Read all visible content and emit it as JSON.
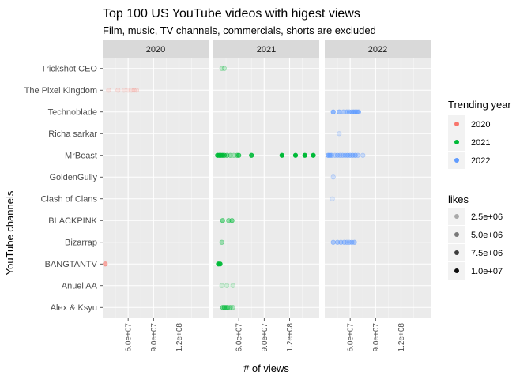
{
  "chart_data": {
    "type": "scatter",
    "title": "Top 100 US YouTube videos with higest views",
    "subtitle": "Film, music, TV channels, commercials, shorts are excluded",
    "xlabel": "# of views",
    "ylabel": "YouTube channels",
    "xlim": [
      30000000,
      155000000
    ],
    "x_ticks": [
      60000000,
      90000000,
      120000000
    ],
    "x_tick_labels": [
      "6.0e+07",
      "9.0e+07",
      "1.2e+08"
    ],
    "grid": true,
    "facets": [
      "2020",
      "2021",
      "2022"
    ],
    "categories": [
      "Trickshot CEO",
      "The Pixel Kingdom",
      "Technoblade",
      "Richa sarkar",
      "MrBeast",
      "GoldenGully",
      "Clash of Clans",
      "BLACKPINK",
      "Bizarrap",
      "BANGTANTV",
      "Anuel AA",
      "Alex & Ksyu"
    ],
    "legend_color": {
      "title": "Trending year",
      "entries": [
        {
          "label": "2020",
          "color": "#F8766D"
        },
        {
          "label": "2021",
          "color": "#00BA38"
        },
        {
          "label": "2022",
          "color": "#619CFF"
        }
      ]
    },
    "legend_alpha": {
      "title": "likes",
      "entries": [
        {
          "label": "2.5e+06",
          "alpha": 0.3
        },
        {
          "label": "5.0e+06",
          "alpha": 0.5
        },
        {
          "label": "7.5e+06",
          "alpha": 0.75
        },
        {
          "label": "1.0e+07",
          "alpha": 0.95
        }
      ]
    },
    "legend_placement": "right",
    "series": [
      {
        "facet": "2020",
        "color": "#F8766D",
        "points": [
          {
            "y": "The Pixel Kingdom",
            "x": 37000000,
            "likes": 900000
          },
          {
            "y": "The Pixel Kingdom",
            "x": 48000000,
            "likes": 900000
          },
          {
            "y": "The Pixel Kingdom",
            "x": 55000000,
            "likes": 900000
          },
          {
            "y": "The Pixel Kingdom",
            "x": 60000000,
            "likes": 900000
          },
          {
            "y": "The Pixel Kingdom",
            "x": 64000000,
            "likes": 900000
          },
          {
            "y": "The Pixel Kingdom",
            "x": 67000000,
            "likes": 900000
          },
          {
            "y": "The Pixel Kingdom",
            "x": 70000000,
            "likes": 900000
          },
          {
            "y": "BANGTANTV",
            "x": 33000000,
            "likes": 6000000
          }
        ]
      },
      {
        "facet": "2021",
        "color": "#00BA38",
        "points": [
          {
            "y": "Trickshot CEO",
            "x": 40000000,
            "likes": 2000000
          },
          {
            "y": "Trickshot CEO",
            "x": 43000000,
            "likes": 2000000
          },
          {
            "y": "MrBeast",
            "x": 35000000,
            "likes": 9000000
          },
          {
            "y": "MrBeast",
            "x": 37000000,
            "likes": 9000000
          },
          {
            "y": "MrBeast",
            "x": 39000000,
            "likes": 9000000
          },
          {
            "y": "MrBeast",
            "x": 41000000,
            "likes": 8000000
          },
          {
            "y": "MrBeast",
            "x": 43000000,
            "likes": 7000000
          },
          {
            "y": "MrBeast",
            "x": 46000000,
            "likes": 5000000
          },
          {
            "y": "MrBeast",
            "x": 50000000,
            "likes": 4000000
          },
          {
            "y": "MrBeast",
            "x": 54000000,
            "likes": 3000000
          },
          {
            "y": "MrBeast",
            "x": 58000000,
            "likes": 5000000
          },
          {
            "y": "MrBeast",
            "x": 60000000,
            "likes": 7000000
          },
          {
            "y": "MrBeast",
            "x": 75000000,
            "likes": 9000000
          },
          {
            "y": "MrBeast",
            "x": 111000000,
            "likes": 10000000
          },
          {
            "y": "MrBeast",
            "x": 127000000,
            "likes": 10000000
          },
          {
            "y": "MrBeast",
            "x": 138000000,
            "likes": 10000000
          },
          {
            "y": "MrBeast",
            "x": 148000000,
            "likes": 10000000
          },
          {
            "y": "BLACKPINK",
            "x": 41000000,
            "likes": 5000000
          },
          {
            "y": "BLACKPINK",
            "x": 48000000,
            "likes": 4000000
          },
          {
            "y": "BLACKPINK",
            "x": 52000000,
            "likes": 5000000
          },
          {
            "y": "Bizarrap",
            "x": 40000000,
            "likes": 3500000
          },
          {
            "y": "BANGTANTV",
            "x": 36000000,
            "likes": 9500000
          },
          {
            "y": "BANGTANTV",
            "x": 38000000,
            "likes": 9500000
          },
          {
            "y": "Anuel AA",
            "x": 40000000,
            "likes": 1500000
          },
          {
            "y": "Anuel AA",
            "x": 46000000,
            "likes": 1500000
          },
          {
            "y": "Anuel AA",
            "x": 53000000,
            "likes": 1500000
          },
          {
            "y": "Alex & Ksyu",
            "x": 41000000,
            "likes": 5000000
          },
          {
            "y": "Alex & Ksyu",
            "x": 43000000,
            "likes": 5000000
          },
          {
            "y": "Alex & Ksyu",
            "x": 45000000,
            "likes": 5000000
          },
          {
            "y": "Alex & Ksyu",
            "x": 47000000,
            "likes": 4000000
          },
          {
            "y": "Alex & Ksyu",
            "x": 50000000,
            "likes": 4000000
          },
          {
            "y": "Alex & Ksyu",
            "x": 53000000,
            "likes": 3000000
          }
        ]
      },
      {
        "facet": "2022",
        "color": "#619CFF",
        "points": [
          {
            "y": "Technoblade",
            "x": 40000000,
            "likes": 7000000
          },
          {
            "y": "Technoblade",
            "x": 47000000,
            "likes": 6000000
          },
          {
            "y": "Technoblade",
            "x": 52000000,
            "likes": 5000000
          },
          {
            "y": "Technoblade",
            "x": 56000000,
            "likes": 6000000
          },
          {
            "y": "Technoblade",
            "x": 59000000,
            "likes": 6000000
          },
          {
            "y": "Technoblade",
            "x": 62000000,
            "likes": 6000000
          },
          {
            "y": "Technoblade",
            "x": 64000000,
            "likes": 6000000
          },
          {
            "y": "Technoblade",
            "x": 66000000,
            "likes": 6000000
          },
          {
            "y": "Technoblade",
            "x": 68000000,
            "likes": 6000000
          },
          {
            "y": "Technoblade",
            "x": 70000000,
            "likes": 6000000
          },
          {
            "y": "Richa sarkar",
            "x": 47000000,
            "likes": 2000000
          },
          {
            "y": "MrBeast",
            "x": 34000000,
            "likes": 7000000
          },
          {
            "y": "MrBeast",
            "x": 36000000,
            "likes": 7000000
          },
          {
            "y": "MrBeast",
            "x": 38000000,
            "likes": 6000000
          },
          {
            "y": "MrBeast",
            "x": 42000000,
            "likes": 4000000
          },
          {
            "y": "MrBeast",
            "x": 45000000,
            "likes": 5000000
          },
          {
            "y": "MrBeast",
            "x": 48000000,
            "likes": 5000000
          },
          {
            "y": "MrBeast",
            "x": 51000000,
            "likes": 5000000
          },
          {
            "y": "MrBeast",
            "x": 54000000,
            "likes": 5000000
          },
          {
            "y": "MrBeast",
            "x": 57000000,
            "likes": 6000000
          },
          {
            "y": "MrBeast",
            "x": 60000000,
            "likes": 6000000
          },
          {
            "y": "MrBeast",
            "x": 63000000,
            "likes": 6000000
          },
          {
            "y": "MrBeast",
            "x": 66000000,
            "likes": 6000000
          },
          {
            "y": "MrBeast",
            "x": 69000000,
            "likes": 4000000
          },
          {
            "y": "MrBeast",
            "x": 75000000,
            "likes": 3000000
          },
          {
            "y": "GoldenGully",
            "x": 40000000,
            "likes": 2500000
          },
          {
            "y": "Clash of Clans",
            "x": 39000000,
            "likes": 1000000
          },
          {
            "y": "Bizarrap",
            "x": 40000000,
            "likes": 5000000
          },
          {
            "y": "Bizarrap",
            "x": 45000000,
            "likes": 5000000
          },
          {
            "y": "Bizarrap",
            "x": 49000000,
            "likes": 5000000
          },
          {
            "y": "Bizarrap",
            "x": 53000000,
            "likes": 5000000
          },
          {
            "y": "Bizarrap",
            "x": 56000000,
            "likes": 5000000
          },
          {
            "y": "Bizarrap",
            "x": 59000000,
            "likes": 5000000
          },
          {
            "y": "Bizarrap",
            "x": 62000000,
            "likes": 5000000
          },
          {
            "y": "Bizarrap",
            "x": 65000000,
            "likes": 5000000
          }
        ]
      }
    ]
  }
}
